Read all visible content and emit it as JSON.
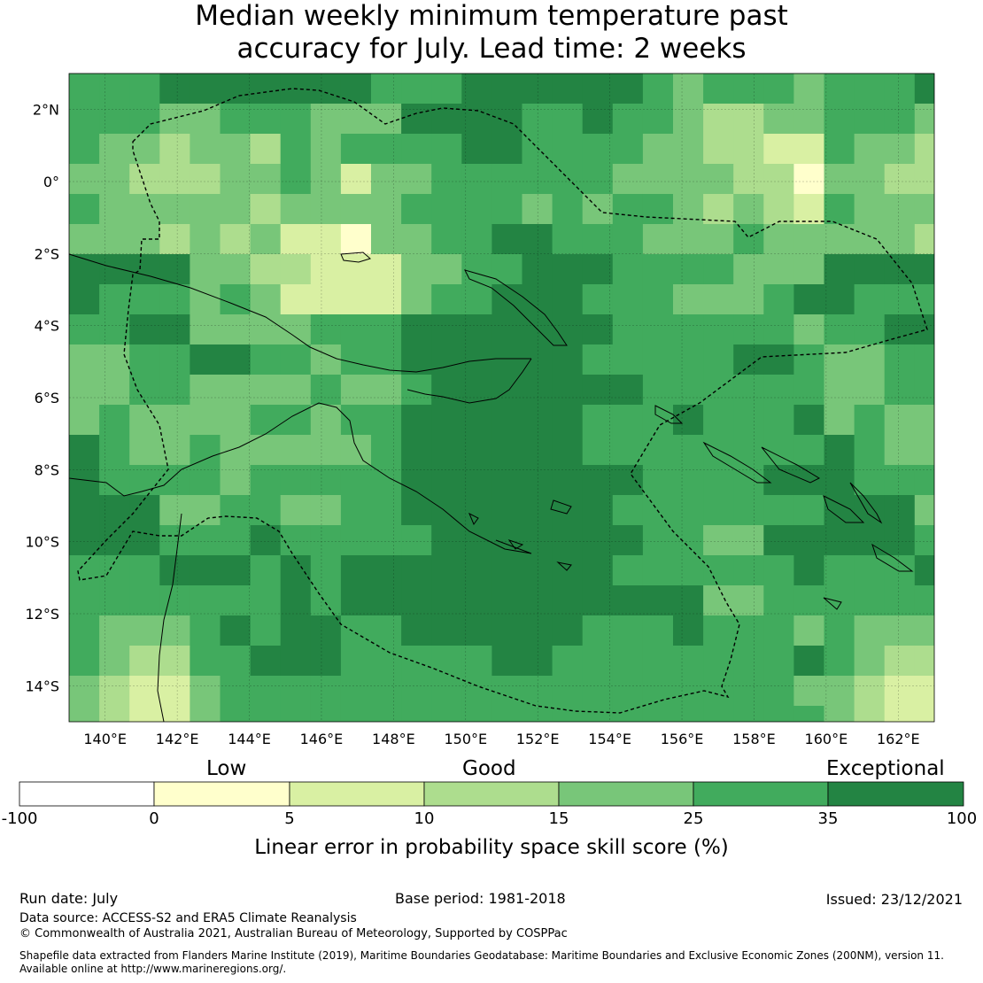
{
  "title": {
    "line1": "Median weekly minimum temperature past",
    "line2": "accuracy for July. Lead time: 2 weeks"
  },
  "map": {
    "lat_range": [
      -15,
      3
    ],
    "lon_range": [
      139,
      163
    ],
    "lat_labels": [
      "2°N",
      "0°",
      "2°S",
      "4°S",
      "6°S",
      "8°S",
      "10°S",
      "12°S",
      "14°S"
    ],
    "lon_labels": [
      "140°E",
      "142°E",
      "144°E",
      "146°E",
      "148°E",
      "150°E",
      "152°E",
      "154°E",
      "156°E",
      "158°E",
      "160°E",
      "162°E"
    ],
    "region_outline": "Papua New Guinea EEZ (dashed)"
  },
  "legend": {
    "categories": [
      "Low",
      "Good",
      "Exceptional"
    ],
    "ticks": [
      "-100",
      "0",
      "5",
      "10",
      "15",
      "25",
      "35",
      "100"
    ],
    "colors": [
      "#ffffff",
      "#ffffcc",
      "#d9f0a3",
      "#addd8e",
      "#78c679",
      "#41ab5d",
      "#238443"
    ],
    "label": "Linear error in probability space skill score (%)"
  },
  "footer": {
    "run_date": "Run date: July",
    "base_period": "Base period: 1981-2018",
    "issued": "Issued: 23/12/2021",
    "data_source": "Data source: ACCESS-S2 and ERA5 Climate Reanalysis",
    "copyright": "© Commonwealth of Australia 2021, Australian Bureau of Meteorology, Supported by COSPPac",
    "shapefile1": "Shapefile data extracted from Flanders Marine Institute (2019), Maritime Boundaries Geodatabase: Maritime Boundaries and Exclusive Economic Zones (200NM), version 11.",
    "shapefile2": "Available online at http://www.marineregions.org/."
  }
}
